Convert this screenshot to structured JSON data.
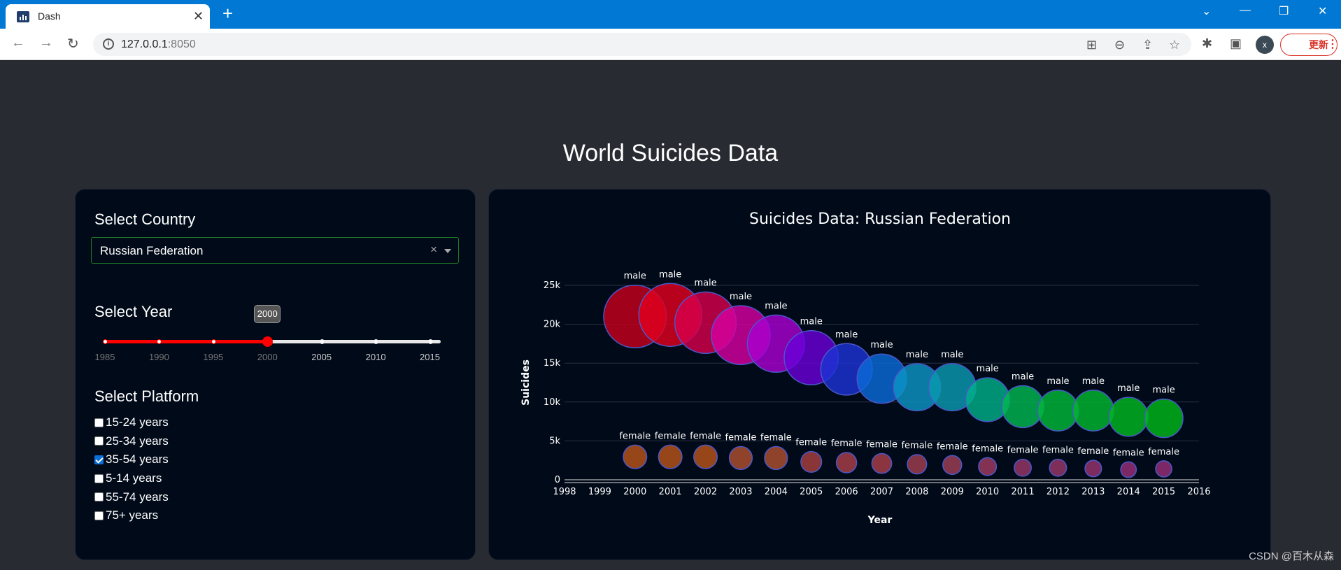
{
  "browser": {
    "tab_title": "Dash",
    "url_host": "127.0.0.1",
    "url_port": ":8050",
    "avatar_letter": "x",
    "update_label": "更新"
  },
  "page": {
    "title": "World Suicides Data",
    "watermark": "CSDN @百木从森"
  },
  "controls": {
    "country_label": "Select Country",
    "country_value": "Russian Federation",
    "year_label": "Select Year",
    "year_value": "2000",
    "year_min": 1985,
    "year_max": 2016,
    "year_selected": 2000,
    "year_marks": [
      "1985",
      "1990",
      "1995",
      "2000",
      "2005",
      "2010",
      "2015"
    ],
    "platform_label": "Select Platform",
    "platforms": [
      {
        "label": "15-24 years",
        "checked": false
      },
      {
        "label": "25-34 years",
        "checked": false
      },
      {
        "label": "35-54 years",
        "checked": true
      },
      {
        "label": "5-14 years",
        "checked": false
      },
      {
        "label": "55-74 years",
        "checked": false
      },
      {
        "label": "75+ years",
        "checked": false
      }
    ]
  },
  "chart_data": {
    "type": "scatter",
    "title": "Suicides Data: Russian Federation",
    "xlabel": "Year",
    "ylabel": "Suicides",
    "xlim": [
      1998,
      2016
    ],
    "ylim": [
      0,
      25000
    ],
    "x_ticks": [
      "1998",
      "1999",
      "2000",
      "2001",
      "2002",
      "2003",
      "2004",
      "2005",
      "2006",
      "2007",
      "2008",
      "2009",
      "2010",
      "2011",
      "2012",
      "2013",
      "2014",
      "2015",
      "2016"
    ],
    "y_ticks": [
      "0",
      "5k",
      "10k",
      "15k",
      "20k",
      "25k"
    ],
    "grid": true,
    "series": [
      {
        "name": "male",
        "x": [
          2000,
          2001,
          2002,
          2003,
          2004,
          2005,
          2006,
          2007,
          2008,
          2009,
          2010,
          2011,
          2012,
          2013,
          2014,
          2015
        ],
        "y": [
          21000,
          21200,
          20200,
          18600,
          17500,
          15700,
          14200,
          13000,
          11900,
          11900,
          10300,
          9400,
          8900,
          8900,
          8100,
          7900
        ],
        "colors": [
          "#c4001b",
          "#e0001e",
          "#d6004a",
          "#d400a0",
          "#a800d0",
          "#6a00d8",
          "#1b33d4",
          "#0a6ad8",
          "#0b95c4",
          "#0a9ab0",
          "#00b08a",
          "#00b850",
          "#00b838",
          "#00b830",
          "#00b820",
          "#00b818"
        ],
        "point_labels": [
          "male",
          "male",
          "male",
          "male",
          "male",
          "male",
          "male",
          "male",
          "male",
          "male",
          "male",
          "male",
          "male",
          "male",
          "male",
          "male"
        ]
      },
      {
        "name": "female",
        "x": [
          2000,
          2001,
          2002,
          2003,
          2004,
          2005,
          2006,
          2007,
          2008,
          2009,
          2010,
          2011,
          2012,
          2013,
          2014,
          2015
        ],
        "y": [
          2950,
          2950,
          2950,
          2800,
          2800,
          2300,
          2200,
          2100,
          2000,
          1900,
          1700,
          1550,
          1550,
          1450,
          1300,
          1400
        ],
        "colors": [
          "#b8541a",
          "#b8541a",
          "#b8541a",
          "#b05030",
          "#b05030",
          "#a84040",
          "#a84048",
          "#a84048",
          "#a04050",
          "#a04058",
          "#a03c60",
          "#983868",
          "#983868",
          "#983470",
          "#983078",
          "#983078"
        ],
        "point_labels": [
          "female",
          "female",
          "female",
          "female",
          "female",
          "female",
          "female",
          "female",
          "female",
          "female",
          "female",
          "female",
          "female",
          "female",
          "female",
          "female"
        ]
      }
    ]
  }
}
